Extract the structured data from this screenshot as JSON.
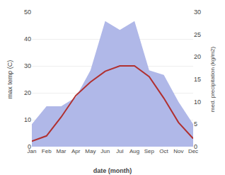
{
  "chart_data": {
    "type": "line",
    "categories": [
      "Jan",
      "Feb",
      "Mar",
      "Apr",
      "May",
      "Jun",
      "Jul",
      "Aug",
      "Sep",
      "Oct",
      "Nov",
      "Dec"
    ],
    "series": [
      {
        "type": "area",
        "color": "#b0b8e8",
        "axis": "y2",
        "values": [
          5,
          9,
          9,
          11,
          17,
          28,
          26,
          28,
          17,
          16,
          10,
          5
        ]
      },
      {
        "type": "line",
        "color": "#b03030",
        "values": [
          2,
          4,
          11,
          19,
          24,
          28,
          30,
          30,
          26,
          18,
          9,
          3
        ]
      }
    ],
    "xlabel": "date (month)",
    "ylabel": "max temp (C)",
    "y2label": "med. precipitation (kg/m2)",
    "ylim": [
      0,
      50
    ],
    "yticks": [
      0,
      10,
      20,
      30,
      40,
      50
    ],
    "y2lim": [
      0,
      30
    ],
    "y2ticks": [
      0,
      5,
      10,
      15,
      20,
      25,
      30
    ],
    "grid": true
  }
}
